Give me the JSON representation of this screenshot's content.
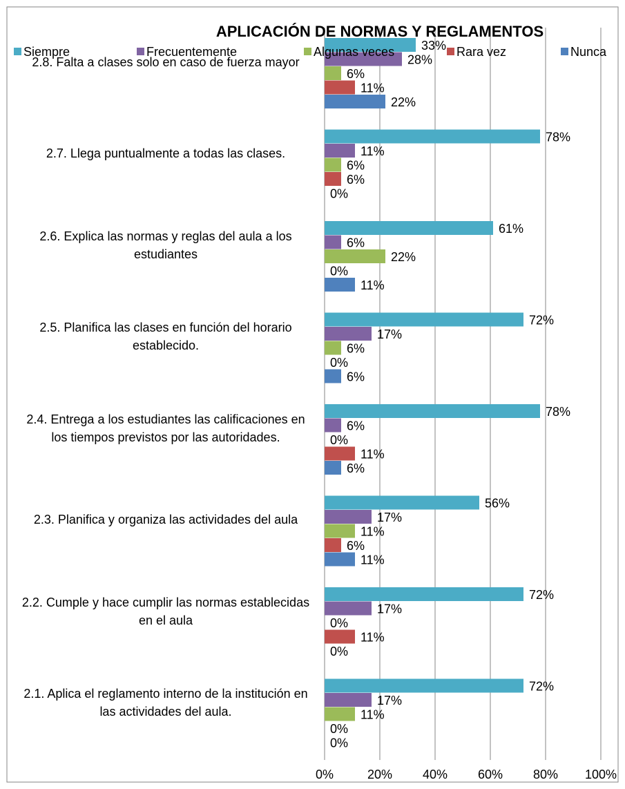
{
  "chart_data": {
    "type": "bar",
    "orientation": "horizontal",
    "title": "APLICACIÓN DE NORMAS Y REGLAMENTOS",
    "categories": [
      "2.1.  Aplica el reglamento interno de la institución en las actividades del aula.",
      "2.2.  Cumple y hace cumplir  las normas establecidas en el aula",
      "2.3.  Planifica y organiza las actividades del aula",
      "2.4.  Entrega a los estudiantes las calificaciones en los tiempos previstos por las autoridades.",
      "2.5.  Planifica las clases en función del horario establecido.",
      "2.6.  Explica las normas y reglas del aula a los estudiantes",
      "2.7.  Llega puntualmente a todas las clases.",
      "2.8.  Falta a  clases solo en caso de fuerza mayor"
    ],
    "series": [
      {
        "name": "Siempre",
        "color": "#4bacc6",
        "values": [
          72,
          72,
          56,
          78,
          72,
          61,
          78,
          33
        ],
        "value_labels": [
          "72%",
          "72%",
          "56%",
          "78%",
          "72%",
          "61%",
          "78%",
          "33%"
        ]
      },
      {
        "name": "Frecuentemente",
        "color": "#8064a2",
        "values": [
          17,
          17,
          17,
          6,
          17,
          6,
          11,
          28
        ],
        "value_labels": [
          "17%",
          "17%",
          "17%",
          "6%",
          "17%",
          "6%",
          "11%",
          "28%"
        ]
      },
      {
        "name": "Algunas veces",
        "color": "#9bbb59",
        "values": [
          11,
          0,
          11,
          0,
          6,
          22,
          6,
          6
        ],
        "value_labels": [
          "11%",
          "0%",
          "11%",
          "0%",
          "6%",
          "22%",
          "6%",
          "6%"
        ]
      },
      {
        "name": "Rara vez",
        "color": "#c0504d",
        "values": [
          0,
          11,
          6,
          11,
          0,
          0,
          6,
          11
        ],
        "value_labels": [
          "0%",
          "11%",
          "6%",
          "11%",
          "0%",
          "0%",
          "6%",
          "11%"
        ]
      },
      {
        "name": "Nunca",
        "color": "#4f81bd",
        "values": [
          0,
          0,
          11,
          6,
          6,
          11,
          0,
          22
        ],
        "value_labels": [
          "0%",
          "0%",
          "11%",
          "6%",
          "6%",
          "11%",
          "0%",
          "22%"
        ]
      }
    ],
    "xlim": [
      0,
      100
    ],
    "xticks": [
      {
        "value": 0,
        "label": "0%"
      },
      {
        "value": 20,
        "label": "20%"
      },
      {
        "value": 40,
        "label": "40%"
      },
      {
        "value": 60,
        "label": "60%"
      },
      {
        "value": 80,
        "label": "80%"
      },
      {
        "value": 100,
        "label": "100%"
      }
    ],
    "grid": true,
    "legend": "top"
  }
}
